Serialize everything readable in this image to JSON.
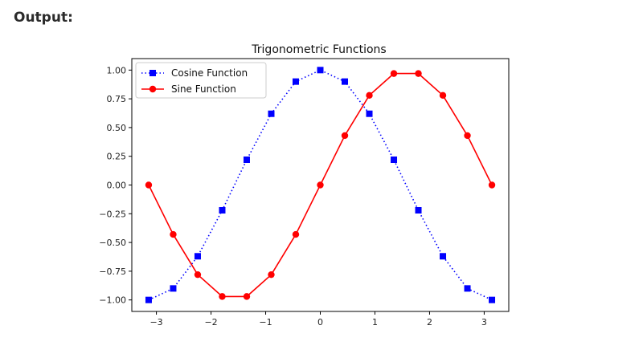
{
  "page": {
    "heading": "Output:"
  },
  "chart_data": {
    "type": "line",
    "title": "Trigonometric Functions",
    "xlabel": "",
    "ylabel": "",
    "xlim": [
      -3.45,
      3.45
    ],
    "ylim": [
      -1.1,
      1.1
    ],
    "xticks": [
      -3,
      -2,
      -1,
      0,
      1,
      2,
      3
    ],
    "xtick_labels": [
      "−3",
      "−2",
      "−1",
      "0",
      "1",
      "2",
      "3"
    ],
    "yticks": [
      1.0,
      0.75,
      0.5,
      0.25,
      0.0,
      -0.25,
      -0.5,
      -0.75,
      -1.0
    ],
    "ytick_labels": [
      "1.00",
      "0.75",
      "0.50",
      "0.25",
      "0.00",
      "−0.25",
      "−0.50",
      "−0.75",
      "−1.00"
    ],
    "grid": false,
    "legend_position": "top-left",
    "x": [
      -3.14159,
      -2.65,
      -2.16,
      -1.67,
      -1.18,
      -0.69,
      -0.2,
      0.2,
      0.69,
      1.18,
      1.67,
      2.16,
      2.65,
      3.14159
    ],
    "series": [
      {
        "name": "Cosine Function",
        "color": "#0000ff",
        "line_style": "dotted",
        "marker": "square",
        "x": [
          -3.14159,
          -2.6928,
          -2.244,
          -1.7952,
          -1.3464,
          -0.8976,
          -0.4488,
          0.0,
          0.4488,
          0.8976,
          1.3464,
          1.7952,
          2.244,
          2.6928,
          3.14159
        ],
        "values": [
          -1.0,
          -0.9,
          -0.62,
          -0.22,
          0.22,
          0.62,
          0.9,
          1.0,
          0.9,
          0.62,
          0.22,
          -0.22,
          -0.62,
          -0.9,
          -1.0
        ]
      },
      {
        "name": "Sine Function",
        "color": "#ff0000",
        "line_style": "solid",
        "marker": "circle",
        "x": [
          -3.14159,
          -2.6928,
          -2.244,
          -1.7952,
          -1.3464,
          -0.8976,
          -0.4488,
          0.0,
          0.4488,
          0.8976,
          1.3464,
          1.7952,
          2.244,
          2.6928,
          3.14159
        ],
        "values": [
          0.0,
          -0.43,
          -0.78,
          -0.97,
          -0.97,
          -0.78,
          -0.43,
          0.0,
          0.43,
          0.78,
          0.97,
          0.97,
          0.78,
          0.43,
          0.0
        ]
      }
    ]
  }
}
